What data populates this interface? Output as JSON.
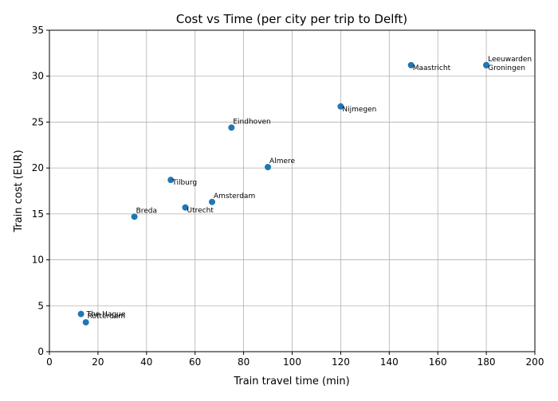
{
  "chart_data": {
    "type": "scatter",
    "title": "Cost vs Time (per city per trip to Delft)",
    "xlabel": "Train travel time (min)",
    "ylabel": "Train cost (EUR)",
    "xlim": [
      0,
      200
    ],
    "ylim": [
      0,
      35
    ],
    "xticks": [
      0,
      20,
      40,
      60,
      80,
      100,
      120,
      140,
      160,
      180,
      200
    ],
    "yticks": [
      0,
      5,
      10,
      15,
      20,
      25,
      30,
      35
    ],
    "grid": true,
    "marker_color": "#1f77b4",
    "points": [
      {
        "label": "Leeuwarden",
        "x": 180,
        "y": 31.2,
        "label_pos": "above"
      },
      {
        "label": "Groningen",
        "x": 180,
        "y": 31.2,
        "label_pos": "below"
      },
      {
        "label": "Maastricht",
        "x": 149,
        "y": 31.2,
        "label_pos": "below"
      },
      {
        "label": "Nijmegen",
        "x": 120,
        "y": 26.7,
        "label_pos": "below"
      },
      {
        "label": "Eindhoven",
        "x": 75,
        "y": 24.4,
        "label_pos": "above"
      },
      {
        "label": "Almere",
        "x": 90,
        "y": 20.1,
        "label_pos": "above"
      },
      {
        "label": "Tilburg",
        "x": 50,
        "y": 18.7,
        "label_pos": "below"
      },
      {
        "label": "Amsterdam",
        "x": 67,
        "y": 16.3,
        "label_pos": "above"
      },
      {
        "label": "Utrecht",
        "x": 56,
        "y": 15.7,
        "label_pos": "below"
      },
      {
        "label": "Breda",
        "x": 35,
        "y": 14.7,
        "label_pos": "above"
      },
      {
        "label": "The Hague",
        "x": 13,
        "y": 4.1,
        "label_pos": "right"
      },
      {
        "label": "Rotterdam",
        "x": 15,
        "y": 3.2,
        "label_pos": "above"
      }
    ]
  }
}
